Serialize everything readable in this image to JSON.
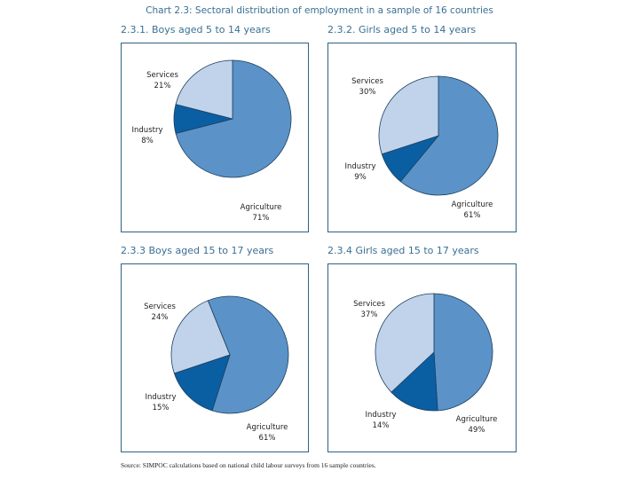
{
  "page": {
    "title": "Chart 2.3: Sectoral distribution of employment in a sample of 16 countries",
    "source": "Source: SIMPOC calculations based on national child labour surveys from 16 sample countries."
  },
  "colors": {
    "Agriculture": "#5b93c8",
    "Industry": "#0a5fa3",
    "Services": "#c0d3ea",
    "border": "#2f6184",
    "title": "#3a6f93"
  },
  "chart_data": [
    {
      "type": "pie",
      "title": "2.3.1. Boys aged 5 to 14 years",
      "start_angle_deg": 0,
      "slices": [
        {
          "label": "Agriculture",
          "value": 71,
          "display": "71%"
        },
        {
          "label": "Industry",
          "value": 8,
          "display": "8%"
        },
        {
          "label": "Services",
          "value": 21,
          "display": "21%"
        }
      ]
    },
    {
      "type": "pie",
      "title": "2.3.2. Girls aged 5 to 14 years",
      "start_angle_deg": 0,
      "slices": [
        {
          "label": "Agriculture",
          "value": 61,
          "display": "61%"
        },
        {
          "label": "Industry",
          "value": 9,
          "display": "9%"
        },
        {
          "label": "Services",
          "value": 30,
          "display": "30%"
        }
      ]
    },
    {
      "type": "pie",
      "title": "2.3.3 Boys aged 15 to 17 years",
      "start_angle_deg": -22,
      "slices": [
        {
          "label": "Agriculture",
          "value": 61,
          "display": "61%"
        },
        {
          "label": "Industry",
          "value": 15,
          "display": "15%"
        },
        {
          "label": "Services",
          "value": 24,
          "display": "24%"
        }
      ]
    },
    {
      "type": "pie",
      "title": "2.3.4 Girls aged 15 to 17 years",
      "start_angle_deg": 0,
      "slices": [
        {
          "label": "Agriculture",
          "value": 49,
          "display": "49%"
        },
        {
          "label": "Industry",
          "value": 14,
          "display": "14%"
        },
        {
          "label": "Services",
          "value": 37,
          "display": "37%"
        }
      ]
    }
  ]
}
